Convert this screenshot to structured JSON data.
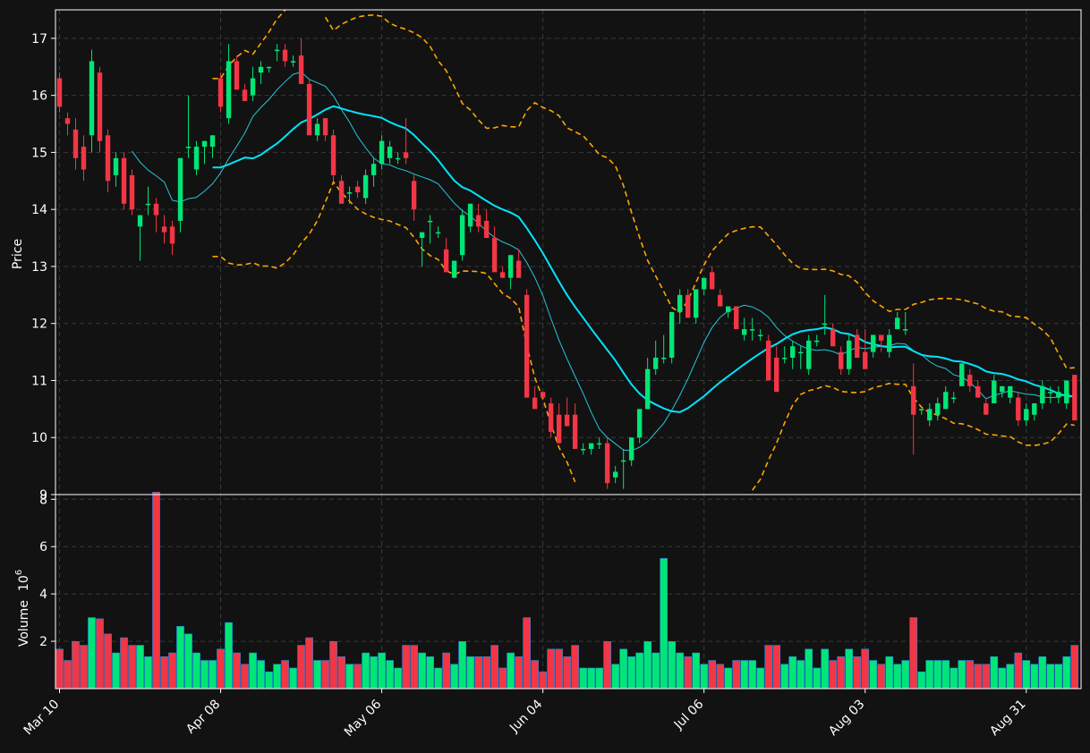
{
  "chart_data": [
    {
      "type": "candlestick",
      "ylabel": "Price",
      "ylim": [
        9,
        17.5
      ],
      "yticks": [
        "9",
        "10",
        "11",
        "12",
        "13",
        "14",
        "15",
        "16",
        "17"
      ],
      "grid": true,
      "background": "#121212",
      "colors": {
        "up": "#00e676",
        "down": "#f23645",
        "ma_short": "#26c6da",
        "ma_long": "#00e5ff",
        "bands": "#ffa500",
        "grid": "#3a3a3a"
      },
      "xtick_labels": [
        "Mar 10",
        "Apr 08",
        "May 06",
        "Jun 04",
        "Jul 06",
        "Aug 03",
        "Aug 31"
      ],
      "ohlc_anchors": [
        [
          16.3,
          16.4,
          15.7,
          15.8
        ],
        [
          15.6,
          15.7,
          15.3,
          15.5
        ],
        [
          15.4,
          15.6,
          14.7,
          14.9
        ],
        [
          15.1,
          15.3,
          14.5,
          14.7
        ],
        [
          15.3,
          16.8,
          15.0,
          16.6
        ],
        [
          16.4,
          16.5,
          15.0,
          15.2
        ],
        [
          15.3,
          15.4,
          14.3,
          14.5
        ],
        [
          14.6,
          15.0,
          14.4,
          14.9
        ],
        [
          14.9,
          15.0,
          14.0,
          14.1
        ],
        [
          14.6,
          14.7,
          13.9,
          14.0
        ],
        [
          13.7,
          13.9,
          13.1,
          13.9
        ],
        [
          14.1,
          14.4,
          13.9,
          14.1
        ],
        [
          14.1,
          14.2,
          13.6,
          13.9
        ],
        [
          13.7,
          13.9,
          13.4,
          13.6
        ],
        [
          13.7,
          13.8,
          13.2,
          13.4
        ],
        [
          13.8,
          14.9,
          13.6,
          14.9
        ],
        [
          15.1,
          16.0,
          14.9,
          15.1
        ],
        [
          14.7,
          15.2,
          14.6,
          15.1
        ],
        [
          15.1,
          15.2,
          14.8,
          15.2
        ],
        [
          15.1,
          15.3,
          14.9,
          15.3
        ],
        [
          16.3,
          16.4,
          15.7,
          15.8
        ],
        [
          15.6,
          16.9,
          15.5,
          16.6
        ],
        [
          16.6,
          16.7,
          16.1,
          16.1
        ],
        [
          16.1,
          16.2,
          15.9,
          15.9
        ],
        [
          16.0,
          16.5,
          15.9,
          16.3
        ],
        [
          16.4,
          16.6,
          16.2,
          16.5
        ],
        [
          16.5,
          16.5,
          16.4,
          16.5
        ],
        [
          16.8,
          16.9,
          16.6,
          16.8
        ],
        [
          16.8,
          16.9,
          16.5,
          16.6
        ],
        [
          16.6,
          16.7,
          16.5,
          16.6
        ],
        [
          16.7,
          17.0,
          16.2,
          16.2
        ],
        [
          16.2,
          16.3,
          15.3,
          15.3
        ],
        [
          15.3,
          15.6,
          15.2,
          15.5
        ],
        [
          15.6,
          15.6,
          15.2,
          15.3
        ],
        [
          15.3,
          15.4,
          14.5,
          14.6
        ],
        [
          14.5,
          14.6,
          14.1,
          14.1
        ],
        [
          14.3,
          14.4,
          14.1,
          14.3
        ],
        [
          14.4,
          14.5,
          14.2,
          14.3
        ],
        [
          14.2,
          14.7,
          14.1,
          14.6
        ],
        [
          14.6,
          14.9,
          14.4,
          14.8
        ],
        [
          14.8,
          15.3,
          14.7,
          15.2
        ],
        [
          14.9,
          15.2,
          14.8,
          15.1
        ],
        [
          14.9,
          15.0,
          14.8,
          14.9
        ],
        [
          15.0,
          15.6,
          14.8,
          14.9
        ],
        [
          14.5,
          14.6,
          13.8,
          14.0
        ],
        [
          13.5,
          13.6,
          13.0,
          13.6
        ],
        [
          13.8,
          13.9,
          13.4,
          13.8
        ],
        [
          13.6,
          13.7,
          13.5,
          13.6
        ],
        [
          13.3,
          13.5,
          12.9,
          12.9
        ],
        [
          12.8,
          13.1,
          12.8,
          13.1
        ],
        [
          13.2,
          14.0,
          13.1,
          13.9
        ],
        [
          13.7,
          14.1,
          13.6,
          14.1
        ],
        [
          13.9,
          14.1,
          13.6,
          13.7
        ],
        [
          13.8,
          14.0,
          13.5,
          13.5
        ],
        [
          13.5,
          13.7,
          12.9,
          12.9
        ],
        [
          12.9,
          13.0,
          12.8,
          12.8
        ],
        [
          12.8,
          13.2,
          12.6,
          13.2
        ],
        [
          13.1,
          13.3,
          12.8,
          12.8
        ],
        [
          12.5,
          12.6,
          10.7,
          10.7
        ],
        [
          10.7,
          10.9,
          10.5,
          10.5
        ],
        [
          10.8,
          10.8,
          10.7,
          10.7
        ],
        [
          10.6,
          10.7,
          10.0,
          10.1
        ],
        [
          10.4,
          10.6,
          9.9,
          9.9
        ],
        [
          10.4,
          10.7,
          10.2,
          10.2
        ],
        [
          10.4,
          10.6,
          9.8,
          9.8
        ],
        [
          9.8,
          9.9,
          9.7,
          9.8
        ],
        [
          9.8,
          9.9,
          9.7,
          9.9
        ],
        [
          9.9,
          10.0,
          9.8,
          9.9
        ],
        [
          9.9,
          10.0,
          9.1,
          9.2
        ],
        [
          9.3,
          9.5,
          9.2,
          9.4
        ],
        [
          9.6,
          9.8,
          9.1,
          9.6
        ],
        [
          9.6,
          10.0,
          9.5,
          10.0
        ],
        [
          10.0,
          10.5,
          9.9,
          10.5
        ],
        [
          10.5,
          11.4,
          10.5,
          11.2
        ],
        [
          11.2,
          11.7,
          11.1,
          11.4
        ],
        [
          11.4,
          11.8,
          11.3,
          11.4
        ],
        [
          11.4,
          12.2,
          11.3,
          12.2
        ],
        [
          12.2,
          12.6,
          12.0,
          12.5
        ],
        [
          12.5,
          12.6,
          12.1,
          12.1
        ],
        [
          12.1,
          12.6,
          12.0,
          12.6
        ],
        [
          12.6,
          12.8,
          12.5,
          12.8
        ],
        [
          12.9,
          13.0,
          12.6,
          12.6
        ],
        [
          12.5,
          12.6,
          12.3,
          12.3
        ],
        [
          12.2,
          12.3,
          12.1,
          12.3
        ],
        [
          12.3,
          12.3,
          11.9,
          11.9
        ],
        [
          11.8,
          12.1,
          11.7,
          11.9
        ],
        [
          11.9,
          12.1,
          11.7,
          11.9
        ],
        [
          11.8,
          11.9,
          11.7,
          11.8
        ],
        [
          11.7,
          11.8,
          11.0,
          11.0
        ],
        [
          11.4,
          11.6,
          10.8,
          10.8
        ],
        [
          11.4,
          11.6,
          11.3,
          11.4
        ],
        [
          11.4,
          11.7,
          11.2,
          11.6
        ],
        [
          11.5,
          11.6,
          11.2,
          11.5
        ],
        [
          11.2,
          11.8,
          11.1,
          11.7
        ],
        [
          11.7,
          11.8,
          11.6,
          11.7
        ],
        [
          12.0,
          12.5,
          11.8,
          12.0
        ],
        [
          11.9,
          12.0,
          11.6,
          11.6
        ],
        [
          11.5,
          11.6,
          11.1,
          11.2
        ],
        [
          11.2,
          11.8,
          11.1,
          11.7
        ],
        [
          11.8,
          11.9,
          11.4,
          11.4
        ],
        [
          11.5,
          11.9,
          11.2,
          11.2
        ],
        [
          11.5,
          11.8,
          11.4,
          11.8
        ],
        [
          11.8,
          11.8,
          11.5,
          11.7
        ],
        [
          11.5,
          11.9,
          11.4,
          11.8
        ],
        [
          11.9,
          12.2,
          11.9,
          12.1
        ],
        [
          11.9,
          12.2,
          11.8,
          11.9
        ],
        [
          10.9,
          11.3,
          9.7,
          10.4
        ],
        [
          10.5,
          10.5,
          10.4,
          10.5
        ],
        [
          10.3,
          10.6,
          10.2,
          10.5
        ],
        [
          10.4,
          10.7,
          10.3,
          10.6
        ],
        [
          10.5,
          10.9,
          10.5,
          10.8
        ],
        [
          10.7,
          10.8,
          10.6,
          10.7
        ],
        [
          10.9,
          11.3,
          10.9,
          11.3
        ],
        [
          11.1,
          11.2,
          10.8,
          10.9
        ],
        [
          10.9,
          11.0,
          10.7,
          10.7
        ],
        [
          10.6,
          10.7,
          10.4,
          10.4
        ],
        [
          10.6,
          11.1,
          10.6,
          11.0
        ],
        [
          10.8,
          10.9,
          10.7,
          10.9
        ],
        [
          10.7,
          10.9,
          10.6,
          10.9
        ],
        [
          10.7,
          10.8,
          10.2,
          10.3
        ],
        [
          10.3,
          10.6,
          10.2,
          10.5
        ],
        [
          10.4,
          10.6,
          10.3,
          10.6
        ],
        [
          10.6,
          11.0,
          10.5,
          10.9
        ],
        [
          10.8,
          10.9,
          10.6,
          10.8
        ],
        [
          10.7,
          10.9,
          10.6,
          10.8
        ],
        [
          10.6,
          11.0,
          10.5,
          11.0
        ],
        [
          11.1,
          11.1,
          10.3,
          10.3
        ]
      ],
      "moving_average_short": [
        null,
        null,
        null,
        null,
        null,
        null,
        null,
        null,
        null,
        null,
        15.0,
        14.9,
        14.7,
        14.6,
        14.5,
        14.2,
        14.2,
        14.3,
        14.4,
        14.6,
        14.9,
        15.2,
        15.6,
        15.8,
        16.0,
        16.2,
        16.4,
        16.5,
        16.4,
        16.3,
        16.2,
        15.9,
        15.6,
        15.3,
        15.1,
        14.9,
        14.8,
        14.7,
        14.7,
        14.6,
        14.6,
        14.5,
        14.4,
        14.3,
        14.1,
        13.9,
        13.7,
        13.5,
        13.4,
        13.3,
        13.2,
        13.3,
        13.5,
        13.6,
        13.5,
        13.4,
        13.3,
        13.1,
        12.8,
        12.4,
        11.9,
        11.5,
        11.1,
        10.8,
        10.4,
        10.1,
        9.9,
        9.8,
        9.8,
        9.9,
        10.1,
        10.4,
        10.8,
        11.2,
        11.6,
        11.9,
        12.1,
        12.3,
        12.3,
        12.2,
        12.1,
        12.0,
        11.8,
        11.7,
        11.6,
        11.6,
        11.5,
        11.5,
        11.6,
        11.6,
        11.6,
        11.6,
        11.7,
        11.8,
        11.8,
        11.7,
        11.6,
        11.4,
        11.2,
        11.1,
        11.0,
        10.9,
        10.8,
        10.8,
        10.7,
        10.7,
        10.8,
        10.7,
        10.7,
        10.7
      ]
    },
    {
      "type": "bar",
      "ylabel": "Volume",
      "scale_label": "10",
      "scale_exponent": "6",
      "yticks": [
        "2",
        "4",
        "6",
        "8"
      ],
      "ylim": [
        0,
        8.2
      ],
      "unit_multiplier": 1000000,
      "grid": true
    }
  ]
}
